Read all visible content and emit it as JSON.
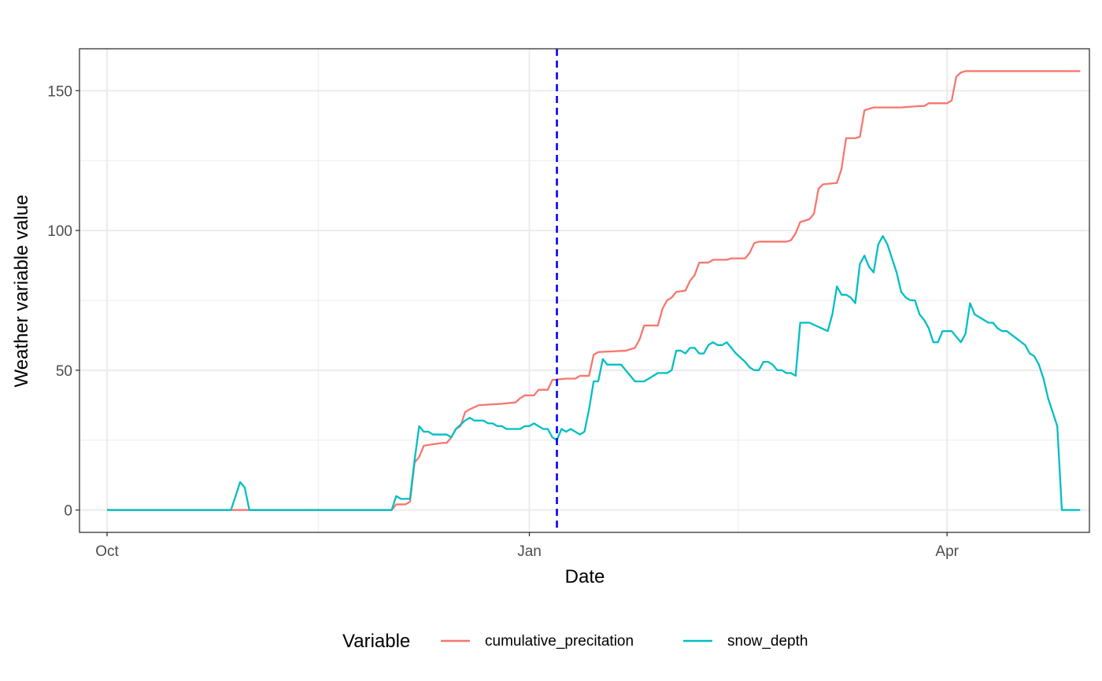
{
  "chart_data": {
    "type": "line",
    "xlabel": "Date",
    "ylabel": "Weather variable value",
    "xlim": [
      "2023-09-25",
      "2024-05-02"
    ],
    "ylim": [
      -8,
      165
    ],
    "x_ticks": [
      {
        "date": "2023-10-01",
        "label": "Oct"
      },
      {
        "date": "2024-01-01",
        "label": "Jan"
      },
      {
        "date": "2024-04-01",
        "label": "Apr"
      }
    ],
    "y_ticks": [
      0,
      50,
      100,
      150
    ],
    "grid": true,
    "legend": {
      "title": "Variable",
      "position": "bottom",
      "entries": [
        "cumulative_precitation",
        "snow_depth"
      ]
    },
    "vline": {
      "date": "2024-01-07",
      "color": "#0000ff",
      "style": "dashed"
    },
    "colors": {
      "cumulative_precitation": "#f8766d",
      "snow_depth": "#00bfc4"
    },
    "series": [
      {
        "name": "cumulative_precitation",
        "points": [
          [
            "2023-10-01",
            0
          ],
          [
            "2023-12-02",
            0
          ],
          [
            "2023-12-03",
            2
          ],
          [
            "2023-12-05",
            2
          ],
          [
            "2023-12-06",
            3
          ],
          [
            "2023-12-07",
            17
          ],
          [
            "2023-12-08",
            19
          ],
          [
            "2023-12-09",
            23
          ],
          [
            "2023-12-11",
            23.5
          ],
          [
            "2023-12-13",
            24
          ],
          [
            "2023-12-14",
            24
          ],
          [
            "2023-12-15",
            26
          ],
          [
            "2023-12-16",
            29
          ],
          [
            "2023-12-17",
            30
          ],
          [
            "2023-12-18",
            35
          ],
          [
            "2023-12-19",
            36
          ],
          [
            "2023-12-21",
            37.5
          ],
          [
            "2023-12-26",
            38
          ],
          [
            "2023-12-29",
            38.5
          ],
          [
            "2023-12-30",
            40
          ],
          [
            "2023-12-31",
            41
          ],
          [
            "2024-01-02",
            41
          ],
          [
            "2024-01-03",
            43
          ],
          [
            "2024-01-05",
            43
          ],
          [
            "2024-01-06",
            46.5
          ],
          [
            "2024-01-09",
            47
          ],
          [
            "2024-01-11",
            47
          ],
          [
            "2024-01-12",
            48
          ],
          [
            "2024-01-14",
            48
          ],
          [
            "2024-01-15",
            55.5
          ],
          [
            "2024-01-16",
            56.5
          ],
          [
            "2024-01-22",
            57
          ],
          [
            "2024-01-24",
            58
          ],
          [
            "2024-01-25",
            61
          ],
          [
            "2024-01-26",
            66
          ],
          [
            "2024-01-29",
            66
          ],
          [
            "2024-01-30",
            72
          ],
          [
            "2024-01-31",
            75
          ],
          [
            "2024-02-01",
            76
          ],
          [
            "2024-02-02",
            78
          ],
          [
            "2024-02-04",
            78.5
          ],
          [
            "2024-02-05",
            82
          ],
          [
            "2024-02-06",
            84
          ],
          [
            "2024-02-07",
            88.5
          ],
          [
            "2024-02-09",
            88.5
          ],
          [
            "2024-02-10",
            89.5
          ],
          [
            "2024-02-13",
            89.5
          ],
          [
            "2024-02-14",
            90
          ],
          [
            "2024-02-17",
            90
          ],
          [
            "2024-02-18",
            92
          ],
          [
            "2024-02-19",
            95.5
          ],
          [
            "2024-02-20",
            96
          ],
          [
            "2024-02-26",
            96
          ],
          [
            "2024-02-27",
            96.5
          ],
          [
            "2024-02-28",
            99
          ],
          [
            "2024-02-29",
            103
          ],
          [
            "2024-03-02",
            104
          ],
          [
            "2024-03-03",
            106
          ],
          [
            "2024-03-04",
            115
          ],
          [
            "2024-03-05",
            116.5
          ],
          [
            "2024-03-08",
            117
          ],
          [
            "2024-03-09",
            122
          ],
          [
            "2024-03-10",
            133
          ],
          [
            "2024-03-12",
            133
          ],
          [
            "2024-03-13",
            133.5
          ],
          [
            "2024-03-14",
            143
          ],
          [
            "2024-03-15",
            143.5
          ],
          [
            "2024-03-16",
            144
          ],
          [
            "2024-03-22",
            144
          ],
          [
            "2024-03-26",
            144.5
          ],
          [
            "2024-03-27",
            144.5
          ],
          [
            "2024-03-28",
            145.5
          ],
          [
            "2024-04-01",
            145.5
          ],
          [
            "2024-04-02",
            146.5
          ],
          [
            "2024-04-03",
            155
          ],
          [
            "2024-04-04",
            156.5
          ],
          [
            "2024-04-05",
            157
          ],
          [
            "2024-04-29",
            157
          ],
          [
            "2024-04-30",
            157
          ]
        ]
      },
      {
        "name": "snow_depth",
        "points": [
          [
            "2023-10-01",
            0
          ],
          [
            "2023-10-28",
            0
          ],
          [
            "2023-10-30",
            10
          ],
          [
            "2023-10-31",
            8
          ],
          [
            "2023-11-01",
            0
          ],
          [
            "2023-12-02",
            0
          ],
          [
            "2023-12-03",
            5
          ],
          [
            "2023-12-04",
            4
          ],
          [
            "2023-12-06",
            4
          ],
          [
            "2023-12-07",
            18
          ],
          [
            "2023-12-08",
            30
          ],
          [
            "2023-12-09",
            28
          ],
          [
            "2023-12-10",
            28
          ],
          [
            "2023-12-11",
            27
          ],
          [
            "2023-12-14",
            27
          ],
          [
            "2023-12-15",
            26
          ],
          [
            "2023-12-16",
            29
          ],
          [
            "2023-12-18",
            32
          ],
          [
            "2023-12-19",
            33
          ],
          [
            "2023-12-20",
            32
          ],
          [
            "2023-12-22",
            32
          ],
          [
            "2023-12-23",
            31
          ],
          [
            "2023-12-24",
            31
          ],
          [
            "2023-12-25",
            30
          ],
          [
            "2023-12-26",
            30
          ],
          [
            "2023-12-27",
            29
          ],
          [
            "2023-12-30",
            29
          ],
          [
            "2023-12-31",
            30
          ],
          [
            "2024-01-01",
            30
          ],
          [
            "2024-01-02",
            31
          ],
          [
            "2024-01-04",
            29
          ],
          [
            "2024-01-05",
            29
          ],
          [
            "2024-01-06",
            26
          ],
          [
            "2024-01-07",
            25
          ],
          [
            "2024-01-08",
            29
          ],
          [
            "2024-01-09",
            28
          ],
          [
            "2024-01-10",
            29
          ],
          [
            "2024-01-11",
            28
          ],
          [
            "2024-01-12",
            27
          ],
          [
            "2024-01-13",
            28
          ],
          [
            "2024-01-14",
            36
          ],
          [
            "2024-01-15",
            46
          ],
          [
            "2024-01-16",
            46
          ],
          [
            "2024-01-17",
            54
          ],
          [
            "2024-01-18",
            52
          ],
          [
            "2024-01-21",
            52
          ],
          [
            "2024-01-24",
            46
          ],
          [
            "2024-01-26",
            46
          ],
          [
            "2024-01-29",
            49
          ],
          [
            "2024-01-31",
            49
          ],
          [
            "2024-02-01",
            50
          ],
          [
            "2024-02-02",
            57
          ],
          [
            "2024-02-03",
            57
          ],
          [
            "2024-02-04",
            56
          ],
          [
            "2024-02-05",
            58
          ],
          [
            "2024-02-06",
            58
          ],
          [
            "2024-02-07",
            56
          ],
          [
            "2024-02-08",
            56
          ],
          [
            "2024-02-09",
            59
          ],
          [
            "2024-02-10",
            60
          ],
          [
            "2024-02-11",
            59
          ],
          [
            "2024-02-12",
            59
          ],
          [
            "2024-02-13",
            60
          ],
          [
            "2024-02-15",
            56
          ],
          [
            "2024-02-17",
            53
          ],
          [
            "2024-02-18",
            51
          ],
          [
            "2024-02-19",
            50
          ],
          [
            "2024-02-20",
            50
          ],
          [
            "2024-02-21",
            53
          ],
          [
            "2024-02-22",
            53
          ],
          [
            "2024-02-23",
            52
          ],
          [
            "2024-02-24",
            50
          ],
          [
            "2024-02-25",
            50
          ],
          [
            "2024-02-26",
            49
          ],
          [
            "2024-02-27",
            49
          ],
          [
            "2024-02-28",
            48
          ],
          [
            "2024-02-29",
            67
          ],
          [
            "2024-03-02",
            67
          ],
          [
            "2024-03-06",
            64
          ],
          [
            "2024-03-07",
            70
          ],
          [
            "2024-03-08",
            80
          ],
          [
            "2024-03-09",
            77
          ],
          [
            "2024-03-10",
            77
          ],
          [
            "2024-03-11",
            76
          ],
          [
            "2024-03-12",
            74
          ],
          [
            "2024-03-13",
            88
          ],
          [
            "2024-03-14",
            91
          ],
          [
            "2024-03-15",
            87
          ],
          [
            "2024-03-16",
            85
          ],
          [
            "2024-03-17",
            95
          ],
          [
            "2024-03-18",
            98
          ],
          [
            "2024-03-19",
            95
          ],
          [
            "2024-03-21",
            85
          ],
          [
            "2024-03-22",
            78
          ],
          [
            "2024-03-23",
            76
          ],
          [
            "2024-03-24",
            75
          ],
          [
            "2024-03-25",
            75
          ],
          [
            "2024-03-26",
            70
          ],
          [
            "2024-03-27",
            68
          ],
          [
            "2024-03-28",
            65
          ],
          [
            "2024-03-29",
            60
          ],
          [
            "2024-03-30",
            60
          ],
          [
            "2024-03-31",
            64
          ],
          [
            "2024-04-02",
            64
          ],
          [
            "2024-04-04",
            60
          ],
          [
            "2024-04-05",
            63
          ],
          [
            "2024-04-06",
            74
          ],
          [
            "2024-04-07",
            70
          ],
          [
            "2024-04-10",
            67
          ],
          [
            "2024-04-11",
            67
          ],
          [
            "2024-04-12",
            65
          ],
          [
            "2024-04-13",
            64
          ],
          [
            "2024-04-14",
            64
          ],
          [
            "2024-04-18",
            59
          ],
          [
            "2024-04-19",
            56
          ],
          [
            "2024-04-20",
            55
          ],
          [
            "2024-04-21",
            52
          ],
          [
            "2024-04-22",
            47
          ],
          [
            "2024-04-23",
            40
          ],
          [
            "2024-04-25",
            30
          ],
          [
            "2024-04-26",
            0
          ],
          [
            "2024-04-30",
            0
          ]
        ]
      }
    ]
  }
}
